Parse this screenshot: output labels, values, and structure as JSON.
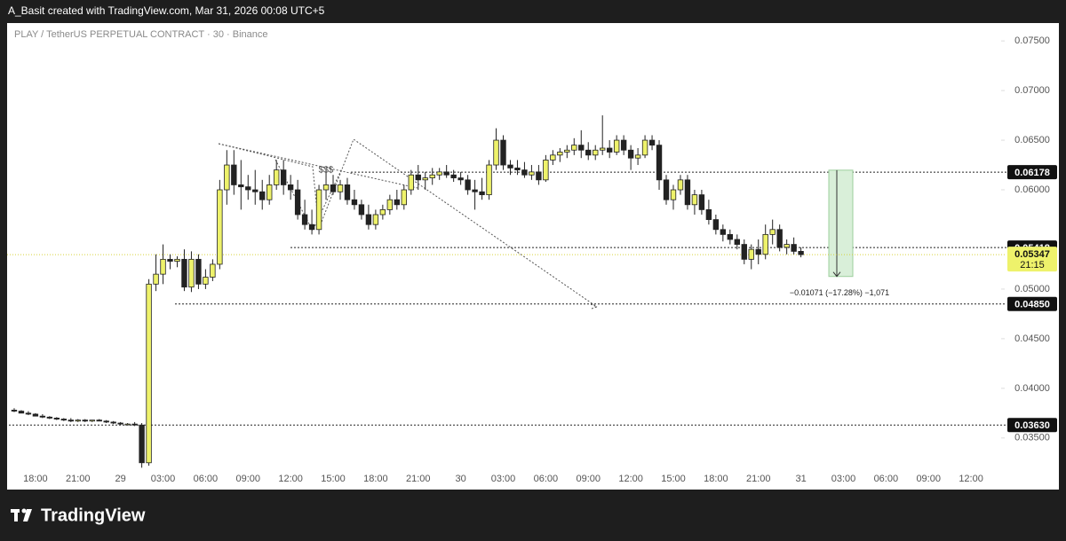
{
  "header": {
    "credit": "A_Basit created with TradingView.com, Mar 31, 2026 00:08 UTC+5"
  },
  "footer": {
    "brand": "TradingView"
  },
  "chart_data": {
    "type": "candlestick",
    "title": "PLAY / TetherUS PERPETUAL CONTRACT · 30 · Binance",
    "up_color": "#eef26b",
    "down_color": "#222222",
    "ohlc": [
      [
        0.0378,
        0.038,
        0.0376,
        0.0377
      ],
      [
        0.0377,
        0.0378,
        0.0375,
        0.0375
      ],
      [
        0.0375,
        0.0377,
        0.0373,
        0.0374
      ],
      [
        0.0374,
        0.0375,
        0.0372,
        0.0372
      ],
      [
        0.0372,
        0.0374,
        0.037,
        0.0371
      ],
      [
        0.0371,
        0.0372,
        0.0369,
        0.037
      ],
      [
        0.037,
        0.0371,
        0.0368,
        0.0369
      ],
      [
        0.0369,
        0.037,
        0.0367,
        0.0368
      ],
      [
        0.0368,
        0.037,
        0.0366,
        0.0367
      ],
      [
        0.0367,
        0.0369,
        0.0366,
        0.0368
      ],
      [
        0.0368,
        0.0369,
        0.0366,
        0.0367
      ],
      [
        0.0367,
        0.0368,
        0.0366,
        0.0368
      ],
      [
        0.0368,
        0.0369,
        0.0367,
        0.0367
      ],
      [
        0.0367,
        0.0368,
        0.0365,
        0.0366
      ],
      [
        0.0366,
        0.0367,
        0.0364,
        0.0365
      ],
      [
        0.0365,
        0.0366,
        0.0363,
        0.0364
      ],
      [
        0.0364,
        0.0365,
        0.0363,
        0.0364
      ],
      [
        0.0364,
        0.0366,
        0.0362,
        0.0363
      ],
      [
        0.0363,
        0.0365,
        0.032,
        0.0325
      ],
      [
        0.0325,
        0.051,
        0.0322,
        0.0505
      ],
      [
        0.0505,
        0.0535,
        0.0498,
        0.0515
      ],
      [
        0.0515,
        0.0545,
        0.0505,
        0.053
      ],
      [
        0.053,
        0.0535,
        0.052,
        0.0528
      ],
      [
        0.0528,
        0.0533,
        0.0522,
        0.053
      ],
      [
        0.053,
        0.054,
        0.0498,
        0.0502
      ],
      [
        0.0502,
        0.0538,
        0.0497,
        0.053
      ],
      [
        0.053,
        0.0535,
        0.05,
        0.0505
      ],
      [
        0.0505,
        0.052,
        0.05,
        0.0512
      ],
      [
        0.0512,
        0.053,
        0.0508,
        0.0525
      ],
      [
        0.0525,
        0.061,
        0.052,
        0.06
      ],
      [
        0.06,
        0.064,
        0.0585,
        0.0625
      ],
      [
        0.0625,
        0.064,
        0.0595,
        0.0605
      ],
      [
        0.0605,
        0.063,
        0.058,
        0.0603
      ],
      [
        0.0603,
        0.0615,
        0.059,
        0.06
      ],
      [
        0.06,
        0.062,
        0.0585,
        0.0598
      ],
      [
        0.0598,
        0.061,
        0.058,
        0.059
      ],
      [
        0.059,
        0.0615,
        0.0585,
        0.0605
      ],
      [
        0.0605,
        0.063,
        0.06,
        0.062
      ],
      [
        0.062,
        0.063,
        0.0595,
        0.0605
      ],
      [
        0.0605,
        0.0615,
        0.059,
        0.06
      ],
      [
        0.06,
        0.061,
        0.057,
        0.0575
      ],
      [
        0.0575,
        0.059,
        0.056,
        0.0565
      ],
      [
        0.0565,
        0.058,
        0.0555,
        0.056
      ],
      [
        0.056,
        0.0605,
        0.0555,
        0.06
      ],
      [
        0.06,
        0.062,
        0.059,
        0.0605
      ],
      [
        0.0605,
        0.0615,
        0.0595,
        0.0598
      ],
      [
        0.0598,
        0.061,
        0.059,
        0.0605
      ],
      [
        0.0605,
        0.0612,
        0.0585,
        0.059
      ],
      [
        0.059,
        0.06,
        0.058,
        0.0585
      ],
      [
        0.0585,
        0.059,
        0.057,
        0.0575
      ],
      [
        0.0575,
        0.0585,
        0.056,
        0.0565
      ],
      [
        0.0565,
        0.058,
        0.056,
        0.0575
      ],
      [
        0.0575,
        0.0585,
        0.057,
        0.058
      ],
      [
        0.058,
        0.0595,
        0.0575,
        0.059
      ],
      [
        0.059,
        0.06,
        0.058,
        0.0585
      ],
      [
        0.0585,
        0.0605,
        0.058,
        0.06
      ],
      [
        0.06,
        0.062,
        0.0595,
        0.0615
      ],
      [
        0.0615,
        0.0625,
        0.06,
        0.061
      ],
      [
        0.061,
        0.0618,
        0.06,
        0.0612
      ],
      [
        0.0612,
        0.0622,
        0.0605,
        0.0615
      ],
      [
        0.0615,
        0.0622,
        0.061,
        0.0618
      ],
      [
        0.0618,
        0.0625,
        0.0612,
        0.0615
      ],
      [
        0.0615,
        0.062,
        0.0608,
        0.0612
      ],
      [
        0.0612,
        0.0618,
        0.0605,
        0.061
      ],
      [
        0.061,
        0.0615,
        0.0595,
        0.06
      ],
      [
        0.06,
        0.061,
        0.058,
        0.0598
      ],
      [
        0.0598,
        0.0612,
        0.059,
        0.0595
      ],
      [
        0.0595,
        0.063,
        0.059,
        0.0625
      ],
      [
        0.0625,
        0.0662,
        0.062,
        0.065
      ],
      [
        0.065,
        0.0655,
        0.062,
        0.0625
      ],
      [
        0.0625,
        0.063,
        0.0615,
        0.0622
      ],
      [
        0.0622,
        0.063,
        0.0615,
        0.062
      ],
      [
        0.062,
        0.0628,
        0.0612,
        0.0615
      ],
      [
        0.0615,
        0.0625,
        0.061,
        0.0618
      ],
      [
        0.0618,
        0.0625,
        0.0605,
        0.061
      ],
      [
        0.061,
        0.0635,
        0.0608,
        0.063
      ],
      [
        0.063,
        0.064,
        0.0625,
        0.0635
      ],
      [
        0.0635,
        0.0642,
        0.0628,
        0.0638
      ],
      [
        0.0638,
        0.0645,
        0.0632,
        0.064
      ],
      [
        0.064,
        0.0652,
        0.0635,
        0.0645
      ],
      [
        0.0645,
        0.066,
        0.0632,
        0.064
      ],
      [
        0.064,
        0.0648,
        0.063,
        0.0635
      ],
      [
        0.0635,
        0.0645,
        0.063,
        0.064
      ],
      [
        0.064,
        0.0675,
        0.0635,
        0.0642
      ],
      [
        0.0642,
        0.065,
        0.0632,
        0.0638
      ],
      [
        0.0638,
        0.0655,
        0.0635,
        0.065
      ],
      [
        0.065,
        0.0655,
        0.0635,
        0.064
      ],
      [
        0.064,
        0.0645,
        0.062,
        0.0632
      ],
      [
        0.0632,
        0.0642,
        0.0625,
        0.0635
      ],
      [
        0.0635,
        0.0655,
        0.0632,
        0.065
      ],
      [
        0.065,
        0.0655,
        0.064,
        0.0645
      ],
      [
        0.0645,
        0.065,
        0.06,
        0.061
      ],
      [
        0.061,
        0.0615,
        0.0585,
        0.059
      ],
      [
        0.059,
        0.0605,
        0.058,
        0.06
      ],
      [
        0.06,
        0.0615,
        0.0595,
        0.061
      ],
      [
        0.061,
        0.0615,
        0.058,
        0.0585
      ],
      [
        0.0585,
        0.06,
        0.0575,
        0.0595
      ],
      [
        0.0595,
        0.06,
        0.0575,
        0.058
      ],
      [
        0.058,
        0.059,
        0.0565,
        0.057
      ],
      [
        0.057,
        0.0575,
        0.0555,
        0.056
      ],
      [
        0.056,
        0.0565,
        0.0548,
        0.0555
      ],
      [
        0.0555,
        0.056,
        0.0545,
        0.055
      ],
      [
        0.055,
        0.0555,
        0.054,
        0.0545
      ],
      [
        0.0545,
        0.055,
        0.0525,
        0.053
      ],
      [
        0.053,
        0.0545,
        0.052,
        0.054
      ],
      [
        0.054,
        0.055,
        0.0525,
        0.0535
      ],
      [
        0.0535,
        0.0565,
        0.053,
        0.0555
      ],
      [
        0.0555,
        0.057,
        0.0545,
        0.056
      ],
      [
        0.056,
        0.0565,
        0.0538,
        0.0542
      ],
      [
        0.0542,
        0.055,
        0.0535,
        0.0545
      ],
      [
        0.0545,
        0.0552,
        0.0535,
        0.0538
      ],
      [
        0.0538,
        0.0542,
        0.0532,
        0.05347
      ]
    ],
    "xlim": [
      -1,
      139
    ],
    "xticks": [
      {
        "value": 3,
        "label": "18:00"
      },
      {
        "value": 9,
        "label": "21:00"
      },
      {
        "value": 15,
        "label": "29"
      },
      {
        "value": 21,
        "label": "03:00"
      },
      {
        "value": 27,
        "label": "06:00"
      },
      {
        "value": 33,
        "label": "09:00"
      },
      {
        "value": 39,
        "label": "12:00"
      },
      {
        "value": 45,
        "label": "15:00"
      },
      {
        "value": 51,
        "label": "18:00"
      },
      {
        "value": 57,
        "label": "21:00"
      },
      {
        "value": 63,
        "label": "30"
      },
      {
        "value": 69,
        "label": "03:00"
      },
      {
        "value": 75,
        "label": "06:00"
      },
      {
        "value": 81,
        "label": "09:00"
      },
      {
        "value": 87,
        "label": "12:00"
      },
      {
        "value": 93,
        "label": "15:00"
      },
      {
        "value": 99,
        "label": "18:00"
      },
      {
        "value": 105,
        "label": "21:00"
      },
      {
        "value": 111,
        "label": "31"
      },
      {
        "value": 117,
        "label": "03:00"
      },
      {
        "value": 123,
        "label": "06:00"
      },
      {
        "value": 129,
        "label": "09:00"
      },
      {
        "value": 135,
        "label": "12:00"
      }
    ],
    "ylim": [
      0.0298,
      0.0768
    ],
    "yticks": [
      {
        "value": 0.075,
        "label": "0.07500"
      },
      {
        "value": 0.07,
        "label": "0.07000"
      },
      {
        "value": 0.065,
        "label": "0.06500"
      },
      {
        "value": 0.06,
        "label": "0.06000"
      },
      {
        "value": 0.05,
        "label": "0.05000"
      },
      {
        "value": 0.045,
        "label": "0.04500"
      },
      {
        "value": 0.04,
        "label": "0.04000"
      },
      {
        "value": 0.035,
        "label": "0.03500"
      }
    ],
    "levels": [
      {
        "value": 0.06178,
        "label": "0.06178"
      },
      {
        "value": 0.05418,
        "label": "0.05418"
      },
      {
        "value": 0.0485,
        "label": "0.04850"
      },
      {
        "value": 0.0363,
        "label": "0.03630"
      }
    ],
    "current_price": {
      "value": 0.05347,
      "label": "0.05347",
      "countdown": "21:15",
      "color": "#eef26b"
    },
    "measure": {
      "from": 0.06198,
      "to": 0.05127,
      "label": "−0.01071 (−17.28%) −1,071",
      "color": "#d9efd9"
    },
    "annotation": "$$$"
  }
}
